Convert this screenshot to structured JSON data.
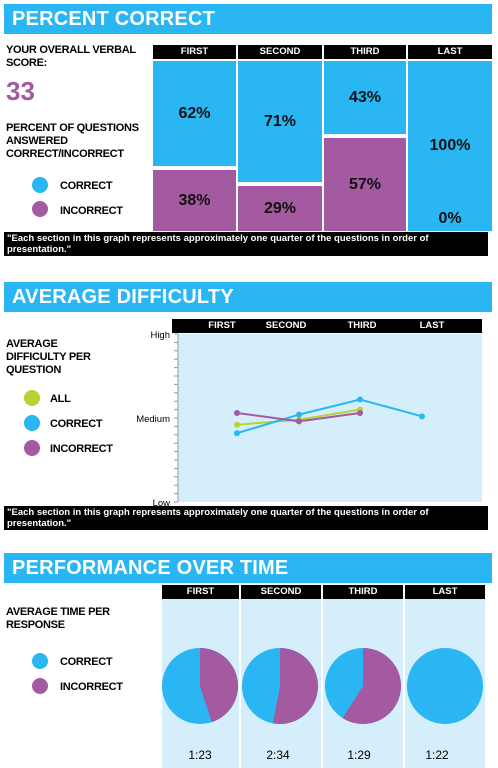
{
  "colors": {
    "accent": "#29b6f2",
    "correct": "#29b6f2",
    "incorrect": "#a45aa0",
    "all": "#b5d334",
    "panel": "#d4eefb"
  },
  "section1": {
    "title": "PERCENT CORRECT",
    "score_label": "YOUR OVERALL VERBAL SCORE:",
    "score_value": "33",
    "chart_label": "PERCENT OF QUESTIONS ANSWERED CORRECT/INCORRECT",
    "legend": {
      "correct": "CORRECT",
      "incorrect": "INCORRECT"
    },
    "headers": [
      "FIRST",
      "SECOND",
      "THIRD",
      "LAST"
    ],
    "correct_labels": [
      "62%",
      "71%",
      "43%",
      "100%"
    ],
    "incorrect_labels": [
      "38%",
      "29%",
      "57%",
      "0%"
    ],
    "note": "\"Each section in this graph represents approximately one quarter of the questions in order of presentation.\""
  },
  "section2": {
    "title": "AVERAGE DIFFICULTY",
    "chart_label": "AVERAGE DIFFICULTY PER QUESTION",
    "legend": {
      "all": "ALL",
      "correct": "CORRECT",
      "incorrect": "INCORRECT"
    },
    "headers": [
      "FIRST",
      "SECOND",
      "THIRD",
      "LAST"
    ],
    "y_high": "High",
    "y_medium": "Medium",
    "y_low": "Low",
    "note": "\"Each section in this graph represents approximately one quarter of the questions in order of presentation.\""
  },
  "section3": {
    "title": "PERFORMANCE OVER TIME",
    "chart_label": "AVERAGE TIME PER RESPONSE",
    "legend": {
      "correct": "CORRECT",
      "incorrect": "INCORRECT"
    },
    "headers": [
      "FIRST",
      "SECOND",
      "THIRD",
      "LAST"
    ],
    "times": [
      "1:23",
      "2:34",
      "1:29",
      "1:22"
    ]
  },
  "chart_data": [
    {
      "type": "bar",
      "title": "PERCENT CORRECT",
      "stacked": true,
      "categories": [
        "FIRST",
        "SECOND",
        "THIRD",
        "LAST"
      ],
      "series": [
        {
          "name": "CORRECT",
          "values": [
            62,
            71,
            43,
            100
          ]
        },
        {
          "name": "INCORRECT",
          "values": [
            38,
            29,
            57,
            0
          ]
        }
      ],
      "ylim": [
        0,
        100
      ]
    },
    {
      "type": "line",
      "title": "AVERAGE DIFFICULTY",
      "categories": [
        "FIRST",
        "SECOND",
        "THIRD",
        "LAST"
      ],
      "y_ticks": [
        "Low",
        "Medium",
        "High"
      ],
      "ylim": [
        0,
        100
      ],
      "series": [
        {
          "name": "ALL",
          "values": [
            46,
            49,
            55,
            null
          ]
        },
        {
          "name": "CORRECT",
          "values": [
            41,
            52,
            61,
            51
          ]
        },
        {
          "name": "INCORRECT",
          "values": [
            53,
            48,
            53,
            null
          ]
        }
      ]
    },
    {
      "type": "pie",
      "title": "PERFORMANCE OVER TIME",
      "categories": [
        "FIRST",
        "SECOND",
        "THIRD",
        "LAST"
      ],
      "series": [
        {
          "name": "CORRECT",
          "values": [
            55,
            47,
            41,
            100
          ]
        },
        {
          "name": "INCORRECT",
          "values": [
            45,
            53,
            59,
            0
          ]
        }
      ],
      "labels": [
        "1:23",
        "2:34",
        "1:29",
        "1:22"
      ]
    }
  ]
}
